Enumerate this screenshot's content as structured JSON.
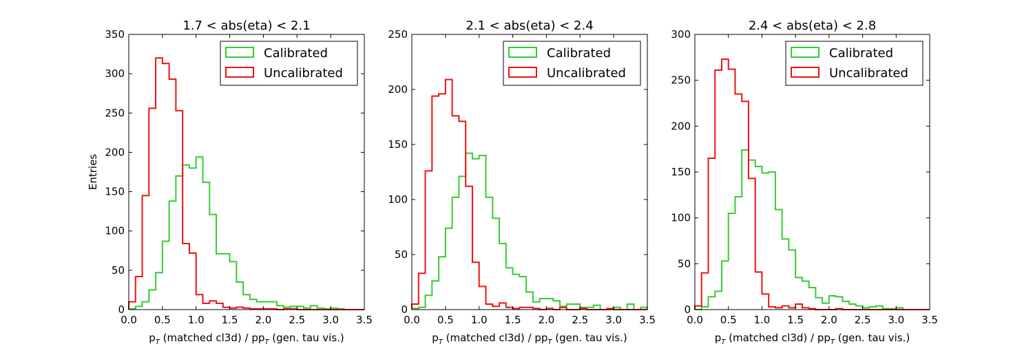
{
  "figure": {
    "ylabel": "Entries",
    "xlabel_main": "p",
    "xlabel_sub": "T",
    "xlabel_mid": " (matched cl3d) / p",
    "xlabel_end": " (gen. tau vis.)"
  },
  "chart_data": [
    {
      "type": "histogram",
      "title": "1.7 < abs(eta) < 2.1",
      "xlim": [
        0.0,
        3.5
      ],
      "ylim": [
        0,
        350
      ],
      "xticks": [
        "0.0",
        "0.5",
        "1.0",
        "1.5",
        "2.0",
        "2.5",
        "3.0",
        "3.5"
      ],
      "yticks": [
        "0",
        "50",
        "100",
        "150",
        "200",
        "250",
        "300",
        "350"
      ],
      "legend_position": "top-right",
      "bin_width": 0.1,
      "series": [
        {
          "name": "Calibrated",
          "color": "#33cc33",
          "values": [
            1,
            4,
            10,
            25,
            47,
            87,
            138,
            170,
            184,
            180,
            194,
            162,
            121,
            71,
            71,
            61,
            35,
            19,
            13,
            10,
            10,
            10,
            5,
            3,
            4,
            4,
            2,
            5,
            2,
            1,
            2,
            1,
            0,
            0,
            0
          ]
        },
        {
          "name": "Uncalibrated",
          "color": "#ee1111",
          "values": [
            10,
            42,
            145,
            256,
            320,
            313,
            293,
            253,
            84,
            72,
            19,
            8,
            11,
            8,
            3,
            2,
            3,
            2,
            1,
            1,
            1,
            1,
            0,
            1,
            1,
            0,
            0,
            0,
            0,
            0,
            0,
            0,
            0,
            0,
            0
          ]
        }
      ]
    },
    {
      "type": "histogram",
      "title": "2.1 < abs(eta) < 2.4",
      "xlim": [
        0.0,
        3.5
      ],
      "ylim": [
        0,
        250
      ],
      "xticks": [
        "0.0",
        "0.5",
        "1.0",
        "1.5",
        "2.0",
        "2.5",
        "3.0",
        "3.5"
      ],
      "yticks": [
        "0",
        "50",
        "100",
        "150",
        "200",
        "250"
      ],
      "legend_position": "top-right",
      "bin_width": 0.1,
      "series": [
        {
          "name": "Calibrated",
          "color": "#33cc33",
          "values": [
            1,
            2,
            13,
            26,
            48,
            74,
            102,
            121,
            142,
            137,
            140,
            102,
            83,
            60,
            38,
            32,
            30,
            16,
            7,
            10,
            10,
            8,
            3,
            5,
            5,
            2,
            2,
            4,
            0,
            0,
            2,
            0,
            5,
            0,
            2
          ]
        },
        {
          "name": "Uncalibrated",
          "color": "#ee1111",
          "values": [
            5,
            33,
            126,
            194,
            196,
            209,
            176,
            171,
            112,
            43,
            21,
            5,
            3,
            6,
            2,
            1,
            2,
            2,
            1,
            0,
            1,
            0,
            2,
            0,
            0,
            1,
            0,
            0,
            0,
            1,
            0,
            0,
            0,
            0,
            0
          ]
        }
      ]
    },
    {
      "type": "histogram",
      "title": "2.4 < abs(eta) < 2.8",
      "xlim": [
        0.0,
        3.5
      ],
      "ylim": [
        0,
        300
      ],
      "xticks": [
        "0.0",
        "0.5",
        "1.0",
        "1.5",
        "2.0",
        "2.5",
        "3.0",
        "3.5"
      ],
      "yticks": [
        "0",
        "50",
        "100",
        "150",
        "200",
        "250",
        "300"
      ],
      "legend_position": "top-right",
      "bin_width": 0.1,
      "series": [
        {
          "name": "Calibrated",
          "color": "#33cc33",
          "values": [
            0,
            3,
            14,
            20,
            53,
            105,
            123,
            174,
            163,
            156,
            149,
            150,
            109,
            77,
            65,
            35,
            31,
            24,
            13,
            7,
            15,
            14,
            9,
            6,
            4,
            2,
            3,
            4,
            1,
            1,
            2,
            0,
            0,
            0,
            0
          ]
        },
        {
          "name": "Uncalibrated",
          "color": "#ee1111",
          "values": [
            4,
            40,
            165,
            261,
            273,
            262,
            235,
            227,
            143,
            41,
            17,
            3,
            2,
            4,
            2,
            6,
            2,
            1,
            0,
            0,
            0,
            1,
            0,
            0,
            0,
            0,
            0,
            0,
            0,
            0,
            0,
            0,
            0,
            0,
            0
          ]
        }
      ]
    }
  ]
}
